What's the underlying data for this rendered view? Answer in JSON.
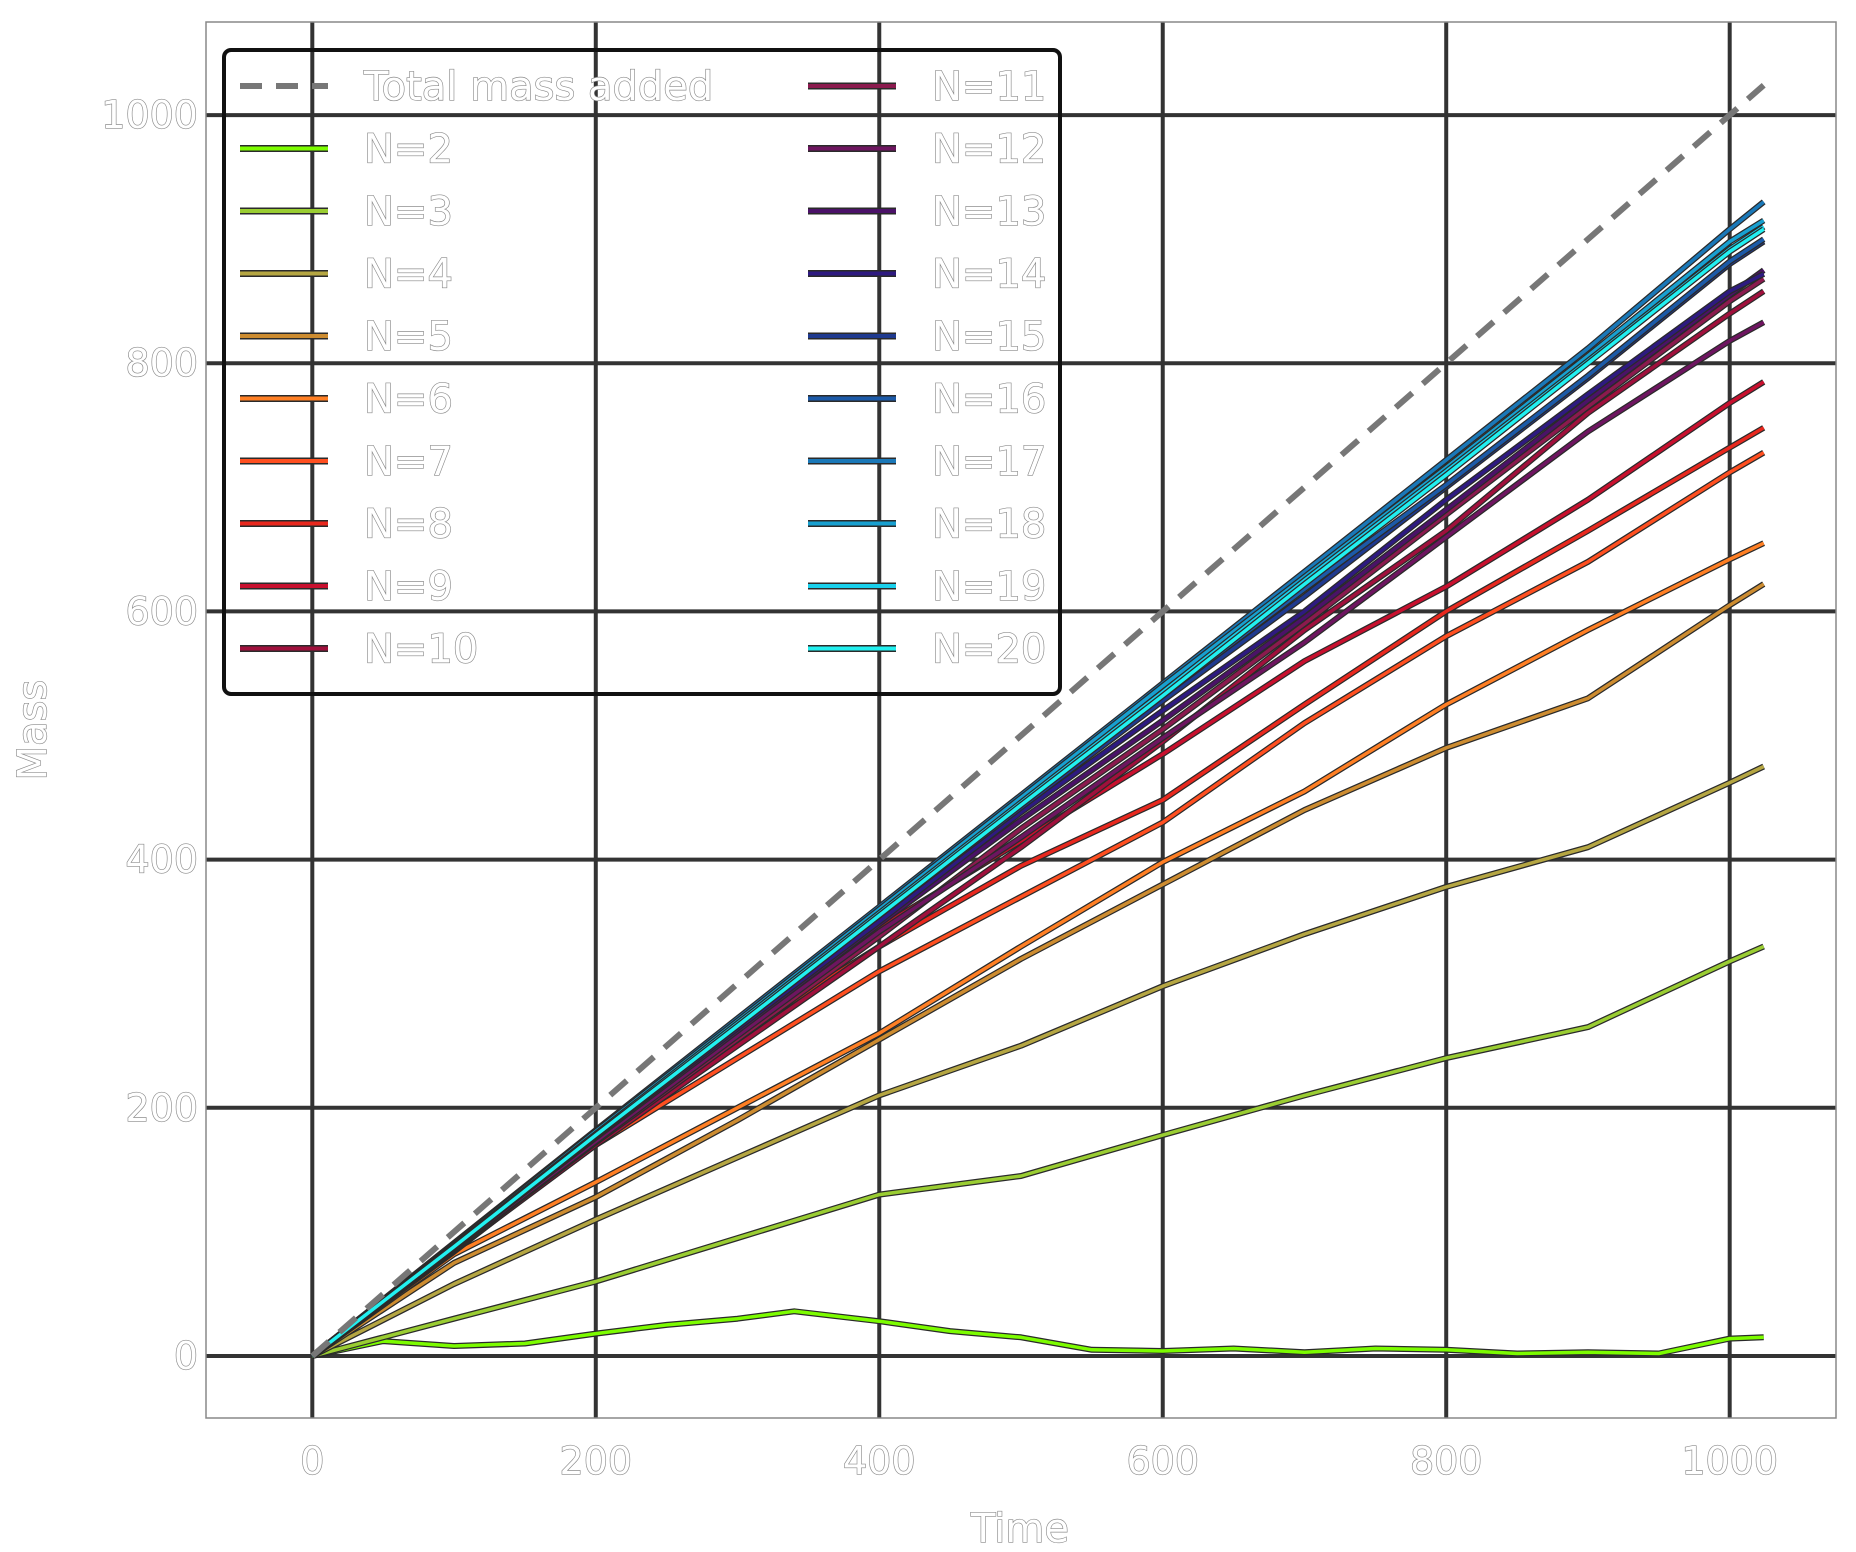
{
  "chart_data": {
    "type": "line",
    "xlabel": "Time",
    "ylabel": "Mass",
    "xlim": [
      -75,
      1075
    ],
    "ylim": [
      -50,
      1075
    ],
    "xticks": [
      0,
      200,
      400,
      600,
      800,
      1000
    ],
    "yticks": [
      0,
      200,
      400,
      600,
      800,
      1000
    ],
    "xtick_labels": [
      "0",
      "200",
      "400",
      "600",
      "800",
      "1000"
    ],
    "ytick_labels": [
      "0",
      "200",
      "400",
      "600",
      "800",
      "1000"
    ],
    "grid": true,
    "legend_position": "top-left",
    "legend_columns": 2,
    "reference_line": {
      "name": "Total mass added",
      "style": "dashed",
      "color": "#777777",
      "x": [
        0,
        1024
      ],
      "y": [
        0,
        1024
      ]
    },
    "series": [
      {
        "name": "N=2",
        "color": "#7cfc00",
        "x": [
          0,
          50,
          100,
          150,
          200,
          250,
          300,
          340,
          400,
          450,
          500,
          550,
          600,
          650,
          700,
          750,
          800,
          850,
          900,
          950,
          1000,
          1024
        ],
        "y": [
          0,
          12,
          8,
          10,
          18,
          25,
          30,
          36,
          28,
          20,
          15,
          5,
          4,
          6,
          3,
          6,
          5,
          2,
          3,
          2,
          14,
          15
        ]
      },
      {
        "name": "N=3",
        "color": "#9acd32",
        "x": [
          0,
          100,
          200,
          300,
          400,
          500,
          600,
          700,
          800,
          900,
          1000,
          1024
        ],
        "y": [
          0,
          30,
          60,
          95,
          130,
          145,
          178,
          210,
          240,
          265,
          318,
          330
        ]
      },
      {
        "name": "N=4",
        "color": "#b5a642",
        "x": [
          0,
          100,
          200,
          300,
          400,
          500,
          600,
          700,
          800,
          900,
          1000,
          1024
        ],
        "y": [
          0,
          58,
          110,
          160,
          210,
          250,
          298,
          340,
          378,
          410,
          462,
          475
        ]
      },
      {
        "name": "N=5",
        "color": "#cd8c30",
        "x": [
          0,
          100,
          200,
          300,
          400,
          500,
          600,
          700,
          800,
          900,
          1000,
          1024
        ],
        "y": [
          0,
          75,
          128,
          190,
          255,
          320,
          380,
          440,
          490,
          530,
          605,
          622
        ]
      },
      {
        "name": "N=6",
        "color": "#ff7f24",
        "x": [
          0,
          100,
          200,
          300,
          400,
          500,
          600,
          700,
          800,
          900,
          1000,
          1024
        ],
        "y": [
          0,
          82,
          140,
          200,
          260,
          330,
          398,
          455,
          525,
          585,
          642,
          655
        ]
      },
      {
        "name": "N=7",
        "color": "#ff4f20",
        "x": [
          0,
          100,
          200,
          300,
          400,
          500,
          600,
          700,
          800,
          900,
          1000,
          1024
        ],
        "y": [
          0,
          86,
          170,
          240,
          310,
          370,
          430,
          510,
          580,
          640,
          712,
          728
        ]
      },
      {
        "name": "N=8",
        "color": "#e8281e",
        "x": [
          0,
          100,
          200,
          300,
          400,
          500,
          600,
          700,
          800,
          900,
          1000,
          1024
        ],
        "y": [
          0,
          88,
          175,
          258,
          330,
          395,
          448,
          525,
          600,
          665,
          732,
          748
        ]
      },
      {
        "name": "N=9",
        "color": "#c8102e",
        "x": [
          0,
          100,
          200,
          300,
          400,
          500,
          600,
          700,
          800,
          900,
          1000,
          1024
        ],
        "y": [
          0,
          84,
          172,
          262,
          345,
          415,
          485,
          560,
          620,
          690,
          768,
          785
        ]
      },
      {
        "name": "N=10",
        "color": "#a0103c",
        "x": [
          0,
          100,
          200,
          300,
          400,
          500,
          600,
          700,
          800,
          900,
          1000,
          1024
        ],
        "y": [
          0,
          85,
          170,
          250,
          330,
          410,
          495,
          585,
          665,
          760,
          840,
          858
        ]
      },
      {
        "name": "N=11",
        "color": "#8b1a4e",
        "x": [
          0,
          100,
          200,
          300,
          400,
          500,
          600,
          700,
          800,
          900,
          1000,
          1024
        ],
        "y": [
          0,
          86,
          172,
          255,
          338,
          425,
          505,
          590,
          678,
          765,
          850,
          868
        ]
      },
      {
        "name": "N=12",
        "color": "#6e1560",
        "x": [
          0,
          100,
          200,
          300,
          400,
          500,
          600,
          700,
          800,
          900,
          1000,
          1024
        ],
        "y": [
          0,
          87,
          173,
          258,
          342,
          418,
          498,
          575,
          660,
          745,
          818,
          833
        ]
      },
      {
        "name": "N=13",
        "color": "#4b1268",
        "x": [
          0,
          100,
          200,
          300,
          400,
          500,
          600,
          700,
          800,
          900,
          1000,
          1024
        ],
        "y": [
          0,
          88,
          176,
          262,
          348,
          432,
          512,
          595,
          682,
          770,
          855,
          875
        ]
      },
      {
        "name": "N=14",
        "color": "#2e1a80",
        "x": [
          0,
          100,
          200,
          300,
          400,
          500,
          600,
          700,
          800,
          900,
          1000,
          1024
        ],
        "y": [
          0,
          88,
          177,
          264,
          350,
          438,
          520,
          600,
          690,
          775,
          858,
          872
        ]
      },
      {
        "name": "N=15",
        "color": "#1f3a8f",
        "x": [
          0,
          100,
          200,
          300,
          400,
          500,
          600,
          700,
          800,
          900,
          1000,
          1024
        ],
        "y": [
          0,
          89,
          178,
          266,
          355,
          442,
          528,
          612,
          700,
          788,
          880,
          898
        ]
      },
      {
        "name": "N=16",
        "color": "#1c5aa8",
        "x": [
          0,
          100,
          200,
          300,
          400,
          500,
          600,
          700,
          800,
          900,
          1000,
          1024
        ],
        "y": [
          0,
          90,
          180,
          268,
          358,
          445,
          532,
          618,
          702,
          790,
          882,
          900
        ]
      },
      {
        "name": "N=17",
        "color": "#1a78b8",
        "x": [
          0,
          100,
          200,
          300,
          400,
          500,
          600,
          700,
          800,
          900,
          1000,
          1024
        ],
        "y": [
          0,
          91,
          182,
          272,
          362,
          452,
          542,
          632,
          722,
          812,
          908,
          930
        ]
      },
      {
        "name": "N=18",
        "color": "#18a0d0",
        "x": [
          0,
          100,
          200,
          300,
          400,
          500,
          600,
          700,
          800,
          900,
          1000,
          1024
        ],
        "y": [
          0,
          90,
          181,
          270,
          360,
          450,
          540,
          628,
          716,
          806,
          898,
          915
        ]
      },
      {
        "name": "N=19",
        "color": "#19d0ec",
        "x": [
          0,
          100,
          200,
          300,
          400,
          500,
          600,
          700,
          800,
          900,
          1000,
          1024
        ],
        "y": [
          0,
          89,
          179,
          268,
          357,
          446,
          535,
          625,
          713,
          802,
          892,
          910
        ]
      },
      {
        "name": "N=20",
        "color": "#22f0f0",
        "x": [
          0,
          100,
          200,
          300,
          400,
          500,
          600,
          700,
          800,
          900,
          1000,
          1024
        ],
        "y": [
          0,
          88,
          178,
          266,
          355,
          444,
          532,
          622,
          710,
          800,
          890,
          908
        ]
      }
    ]
  }
}
